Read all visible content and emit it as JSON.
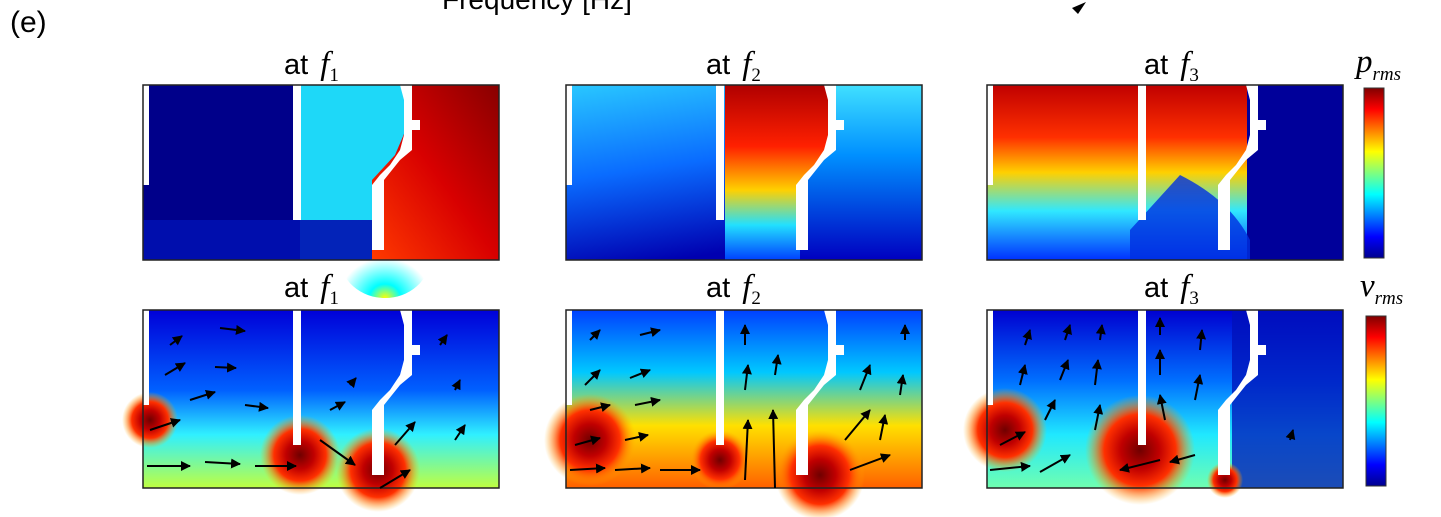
{
  "figure": {
    "panel_label": "(e)",
    "top_axis_cut_label": "Frequency [Hz]",
    "prefix": "at",
    "freq_symbol": "f",
    "rows": [
      {
        "quantity": "p_rms",
        "colorbar_symbol": "p",
        "colorbar_sub": "rms",
        "panels": [
          {
            "sub": "1"
          },
          {
            "sub": "2"
          },
          {
            "sub": "3"
          }
        ]
      },
      {
        "quantity": "v_rms",
        "colorbar_symbol": "v",
        "colorbar_sub": "rms",
        "panels": [
          {
            "sub": "1"
          },
          {
            "sub": "2"
          },
          {
            "sub": "3"
          }
        ]
      }
    ],
    "colormap": [
      "#00008f",
      "#0000ff",
      "#00ffff",
      "#ffff00",
      "#ff0000",
      "#800000"
    ]
  }
}
